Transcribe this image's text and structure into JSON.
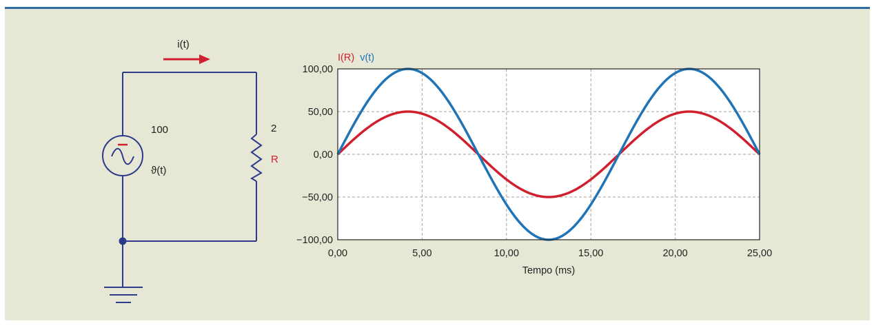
{
  "colors": {
    "panel_bg": "#e6e8d5",
    "top_rule": "#2f6aa3",
    "wire": "#2d3a8c",
    "current_series": "#d0202e",
    "voltage_series": "#1f74b7",
    "grid": "#a0a0a0"
  },
  "circuit": {
    "current_label": "i(t)",
    "source_value": "100",
    "source_symbol": "ϑ(t)",
    "source_sign": "−",
    "resistor_value": "2",
    "resistor_label": "R"
  },
  "chart_data": {
    "type": "line",
    "title": "",
    "xlabel": "Tempo (ms)",
    "ylabel": "",
    "xlim": [
      0,
      25
    ],
    "ylim": [
      -100,
      100
    ],
    "x_ticks": [
      0,
      5,
      10,
      15,
      20,
      25
    ],
    "x_tick_labels": [
      "0,00",
      "5,00",
      "10,00",
      "15,00",
      "20,00",
      "25,00"
    ],
    "y_ticks": [
      100,
      50,
      0,
      -50,
      -100
    ],
    "y_tick_labels": [
      "100,00",
      "50,00",
      "0,00",
      "−50,00",
      "−100,00"
    ],
    "grid": true,
    "legend_position": "top-left",
    "series": [
      {
        "name": "I(R)",
        "color": "#d0202e",
        "amplitude": 50,
        "frequency_hz": 60,
        "x_start": 0,
        "x_end": 25
      },
      {
        "name": "v(t)",
        "color": "#1f74b7",
        "amplitude": 100,
        "frequency_hz": 60,
        "x_start": 0,
        "x_end": 25
      }
    ]
  }
}
